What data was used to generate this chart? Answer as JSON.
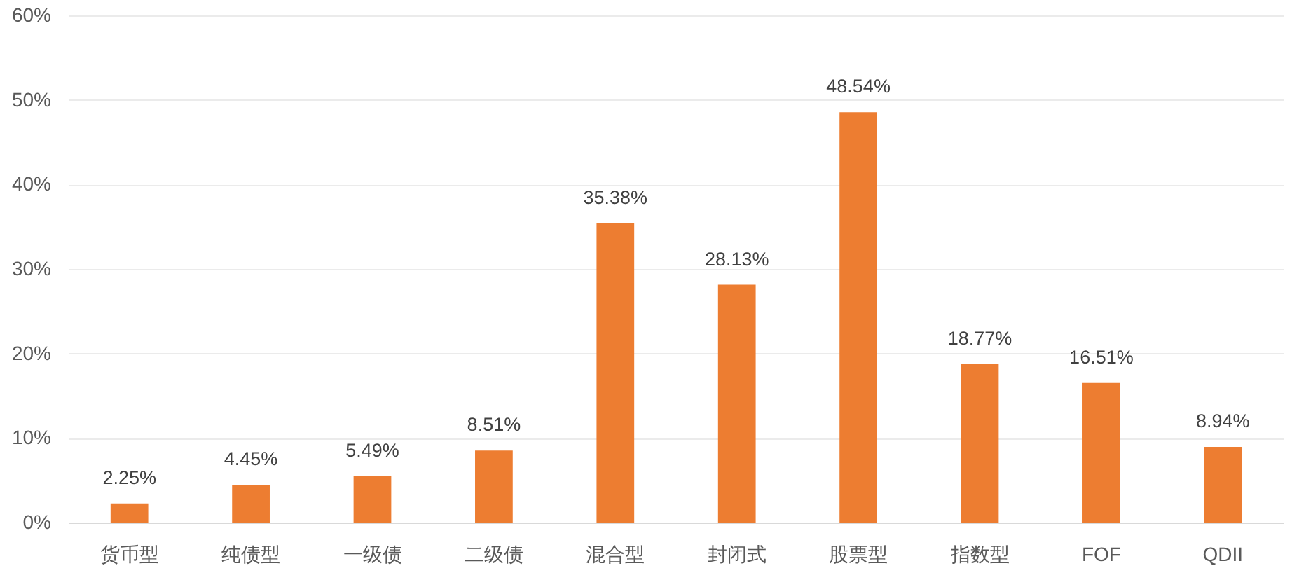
{
  "chart_data": {
    "type": "bar",
    "categories": [
      "货币型",
      "纯债型",
      "一级债",
      "二级债",
      "混合型",
      "封闭式",
      "股票型",
      "指数型",
      "FOF",
      "QDII"
    ],
    "values": [
      2.25,
      4.45,
      5.49,
      8.51,
      35.38,
      28.13,
      48.54,
      18.77,
      16.51,
      8.94
    ],
    "value_labels": [
      "2.25%",
      "4.45%",
      "5.49%",
      "8.51%",
      "35.38%",
      "28.13%",
      "48.54%",
      "18.77%",
      "16.51%",
      "8.94%"
    ],
    "color": "#ed7d31",
    "ylim": [
      0,
      60
    ],
    "yticks": [
      {
        "value": 0,
        "label": "0%"
      },
      {
        "value": 10,
        "label": "10%"
      },
      {
        "value": 20,
        "label": "20%"
      },
      {
        "value": 30,
        "label": "30%"
      },
      {
        "value": 40,
        "label": "40%"
      },
      {
        "value": 50,
        "label": "50%"
      },
      {
        "value": 60,
        "label": "60%"
      }
    ],
    "grid": "y"
  }
}
